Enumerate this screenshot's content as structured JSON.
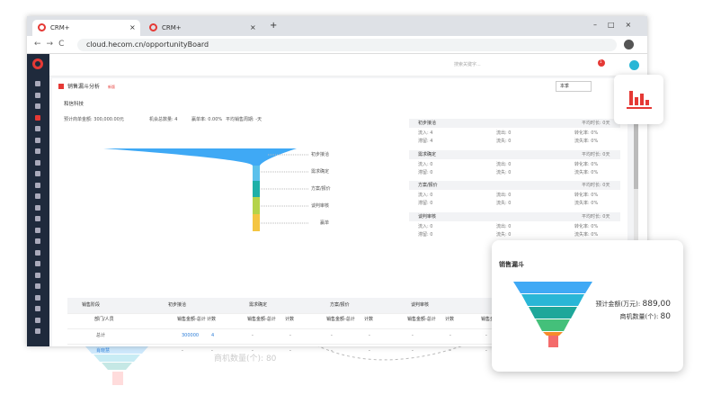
{
  "browser": {
    "tabs": [
      "CRM+",
      "CRM+"
    ],
    "url": "cloud.hecom.cn/opportunityBoard"
  },
  "app": {
    "search_placeholder": "搜索关键字...",
    "badge": "1",
    "page_title": "销售漏斗分析",
    "tag": "新版",
    "period": "本季",
    "company": "和信科技",
    "summary": [
      "预计商单金额: 300,000.00元",
      "机会总数量: 4",
      "赢单率: 0.00%",
      "平均销售周期: -天"
    ],
    "funnel_stages": [
      "初步接洽",
      "需求确定",
      "方案/报价",
      "谈判审核",
      "赢单"
    ],
    "stage_details": [
      {
        "name": "初步接洽",
        "avg": "平均时长: 0天",
        "rows": [
          [
            "流入: 4",
            "流出: 0",
            "转化率: 0%"
          ],
          [
            "滞留: 4",
            "流失: 0",
            "流失率: 0%"
          ]
        ]
      },
      {
        "name": "需求确定",
        "avg": "平均时长: 0天",
        "rows": [
          [
            "流入: 0",
            "流出: 0",
            "转化率: 0%"
          ],
          [
            "滞留: 0",
            "流失: 0",
            "流失率: 0%"
          ]
        ]
      },
      {
        "name": "方案/报价",
        "avg": "平均时长: 0天",
        "rows": [
          [
            "流入: 0",
            "流出: 0",
            "转化率: 0%"
          ],
          [
            "滞留: 0",
            "流失: 0",
            "流失率: 0%"
          ]
        ]
      },
      {
        "name": "谈判审核",
        "avg": "平均时长: 0天",
        "rows": [
          [
            "流入: 0",
            "流出: 0",
            "转化率: 0%"
          ],
          [
            "滞留: 0",
            "流失: 0",
            "流失率: 0%"
          ]
        ]
      }
    ],
    "table": {
      "corner": "销售阶段",
      "stages": [
        "初步接洽",
        "需求确定",
        "方案/报价",
        "谈判审核"
      ],
      "subheader": [
        "部门/人员",
        "销售金额-总计",
        "计数",
        "销售金额-总计",
        "计数",
        "销售金额-总计",
        "计数",
        "销售金额-总计",
        "计数",
        "销售金额-总计"
      ],
      "rows": [
        [
          "总计",
          "300000",
          "4",
          "-",
          "-",
          "-",
          "-",
          "-",
          "-",
          "-"
        ],
        [
          "肖晓慧",
          "-",
          "-",
          "-",
          "-",
          "-",
          "-",
          "-",
          "-",
          "-"
        ]
      ]
    }
  },
  "card": {
    "title": "销售漏斗",
    "amount_label": "预计金额(万元):",
    "amount": "889,00",
    "count_label": "商机数量(个):",
    "count": "80"
  }
}
